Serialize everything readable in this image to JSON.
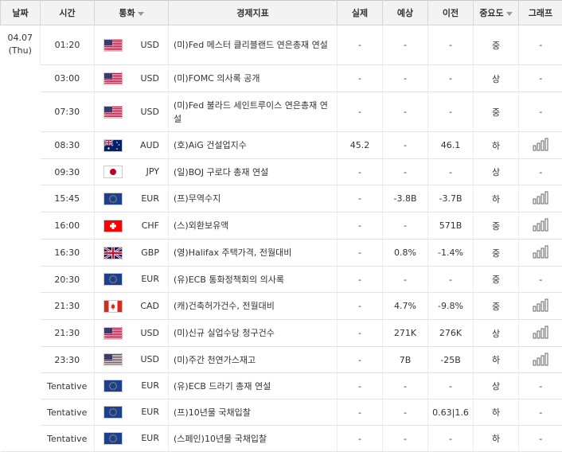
{
  "columns": {
    "date": "날짜",
    "time": "시간",
    "currency": "통화",
    "indicator": "경제지표",
    "actual": "실제",
    "forecast": "예상",
    "previous": "이전",
    "importance": "중요도",
    "graph": "그래프"
  },
  "date": {
    "day": "04.07",
    "weekday": "(Thu)"
  },
  "rows": [
    {
      "time": "01:20",
      "flag": "us-flag-icon",
      "currency": "USD",
      "indicator": "(미)Fed 메스터 클리블랜드 연은총재 연설",
      "actual": "-",
      "forecast": "-",
      "previous": "-",
      "importance": "중",
      "graph": false
    },
    {
      "time": "03:00",
      "flag": "us-flag-icon",
      "currency": "USD",
      "indicator": "(미)FOMC 의사록 공개",
      "actual": "-",
      "forecast": "-",
      "previous": "-",
      "importance": "상",
      "graph": false
    },
    {
      "time": "07:30",
      "flag": "us-flag-icon",
      "currency": "USD",
      "indicator": "(미)Fed 불라드 세인트루이스 연은총재 연설",
      "actual": "-",
      "forecast": "-",
      "previous": "-",
      "importance": "중",
      "graph": false
    },
    {
      "time": "08:30",
      "flag": "au-flag-icon",
      "currency": "AUD",
      "indicator": "(호)AiG 건설업지수",
      "actual": "45.2",
      "forecast": "-",
      "previous": "46.1",
      "importance": "하",
      "graph": true
    },
    {
      "time": "09:30",
      "flag": "jp-flag-icon",
      "currency": "JPY",
      "indicator": "(일)BOJ 구로다 총재 연설",
      "actual": "-",
      "forecast": "-",
      "previous": "-",
      "importance": "상",
      "graph": false
    },
    {
      "time": "15:45",
      "flag": "eu-flag-icon",
      "currency": "EUR",
      "indicator": "(프)무역수지",
      "actual": "-",
      "forecast": "-3.8B",
      "previous": "-3.7B",
      "importance": "하",
      "graph": true
    },
    {
      "time": "16:00",
      "flag": "ch-flag-icon",
      "currency": "CHF",
      "indicator": "(스)외환보유액",
      "actual": "-",
      "forecast": "-",
      "previous": "571B",
      "importance": "중",
      "graph": true
    },
    {
      "time": "16:30",
      "flag": "gb-flag-icon",
      "currency": "GBP",
      "indicator": "(영)Halifax 주택가격, 전월대비",
      "actual": "-",
      "forecast": "0.8%",
      "previous": "-1.4%",
      "importance": "중",
      "graph": true
    },
    {
      "time": "20:30",
      "flag": "eu-flag-icon",
      "currency": "EUR",
      "indicator": "(유)ECB 통화정책회의 의사록",
      "actual": "-",
      "forecast": "-",
      "previous": "-",
      "importance": "중",
      "graph": false
    },
    {
      "time": "21:30",
      "flag": "ca-flag-icon",
      "currency": "CAD",
      "indicator": "(캐)건축허가건수, 전월대비",
      "actual": "-",
      "forecast": "4.7%",
      "previous": "-9.8%",
      "importance": "중",
      "graph": true
    },
    {
      "time": "21:30",
      "flag": "us-flag-icon",
      "currency": "USD",
      "indicator": "(미)신규 실업수당 청구건수",
      "actual": "-",
      "forecast": "271K",
      "previous": "276K",
      "importance": "상",
      "graph": true
    },
    {
      "time": "23:30",
      "flag": "us-flag-icon",
      "currency": "USD",
      "indicator": "(미)주간 천연가스재고",
      "actual": "-",
      "forecast": "7B",
      "previous": "-25B",
      "importance": "하",
      "graph": true
    },
    {
      "time": "Tentative",
      "flag": "eu-flag-icon",
      "currency": "EUR",
      "indicator": "(유)ECB 드라기 총재 연설",
      "actual": "-",
      "forecast": "-",
      "previous": "-",
      "importance": "상",
      "graph": false
    },
    {
      "time": "Tentative",
      "flag": "eu-flag-icon",
      "currency": "EUR",
      "indicator": "(프)10년물 국채입찰",
      "actual": "-",
      "forecast": "-",
      "previous": "0.63|1.6",
      "importance": "하",
      "graph": false
    },
    {
      "time": "Tentative",
      "flag": "eu-flag-icon",
      "currency": "EUR",
      "indicator": "(스페인)10년물 국채입찰",
      "actual": "-",
      "forecast": "-",
      "previous": "-",
      "importance": "하",
      "graph": false
    }
  ],
  "no_graph_text": "-",
  "colors": {
    "header_bg": "#f3f3f3",
    "border": "#e3e3e3",
    "graph_icon": "#666666"
  }
}
